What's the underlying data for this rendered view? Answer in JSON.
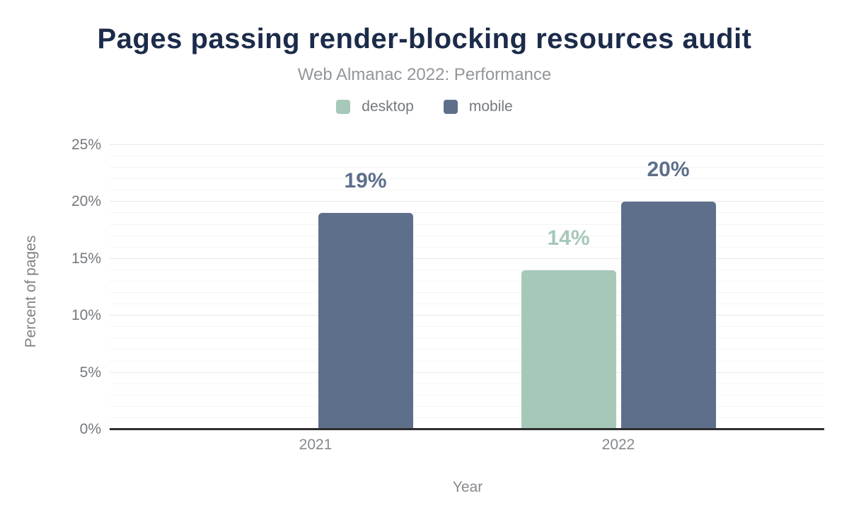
{
  "title": "Pages passing render-blocking resources audit",
  "subtitle": "Web Almanac 2022: Performance",
  "colors": {
    "title_navy": "#1c2b4a",
    "desktop_green": "#a6c8b8",
    "mobile_slate": "#5d6f8a",
    "axis_line": "#2e2e30",
    "text_gray": "#75797e"
  },
  "chart_data": {
    "type": "bar",
    "categories": [
      "2021",
      "2022"
    ],
    "series": [
      {
        "name": "desktop",
        "color": "#a6c8b8",
        "values": [
          null,
          14
        ],
        "labels": [
          "",
          "14%"
        ]
      },
      {
        "name": "mobile",
        "color": "#5d6f8a",
        "values": [
          19,
          20
        ],
        "labels": [
          "19%",
          "20%"
        ]
      }
    ],
    "xlabel": "Year",
    "ylabel": "Percent of pages",
    "ylim": [
      0,
      25
    ],
    "ytick_step": 5,
    "minor_grid_step": 1,
    "yticks": [
      "0%",
      "5%",
      "10%",
      "15%",
      "20%",
      "25%"
    ],
    "grid": "horizontal, minor every 1%, major every 5%",
    "legend_position": "top"
  }
}
